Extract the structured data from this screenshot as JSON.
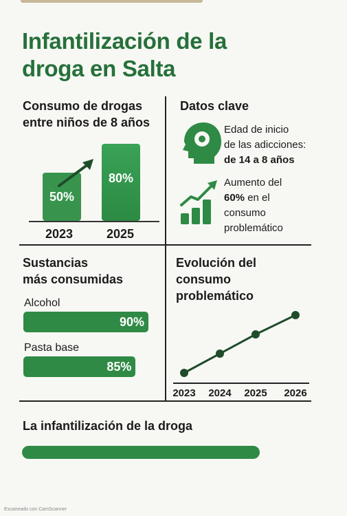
{
  "title_line1": "Infantilización de la",
  "title_line2": "droga en Salta",
  "section_consumo": {
    "title_line1": "Consumo de drogas",
    "title_line2": "entre niños de 8 años"
  },
  "section_datos": {
    "title": "Datos clave",
    "fact1": {
      "line1": "Edad de inicio",
      "line2": "de las adicciones:",
      "line3_bold": "de 14 a 8 años"
    },
    "fact2": {
      "line1": "Aumento del",
      "line2_bold": "60%",
      "line2_rest": " en el",
      "line3": "consumo",
      "line4": "problemático"
    },
    "icons": [
      "head-icon",
      "growth-chart-icon"
    ]
  },
  "section_sustancias": {
    "title_line1": "Sustancias",
    "title_line2": "más consumidas"
  },
  "section_evolucion": {
    "title_line1": "Evolución del",
    "title_line2": "consumo",
    "title_line3": "problemático"
  },
  "section_bottom": {
    "title": "La infantilización de la droga"
  },
  "footer": "Escaneado con CamScanner",
  "colors": {
    "green": "#2f8a45",
    "title_green": "#26703a",
    "dark_green": "#1f4d2c"
  },
  "chart_data": [
    {
      "type": "bar",
      "categories": [
        "2023",
        "2025"
      ],
      "values": [
        50,
        80
      ],
      "labels": [
        "50%",
        "80%"
      ],
      "title": "Consumo de drogas entre niños de 8 años",
      "ylim": [
        0,
        100
      ]
    },
    {
      "type": "bar",
      "orientation": "horizontal",
      "categories": [
        "Alcohol",
        "Pasta base"
      ],
      "values": [
        90,
        85
      ],
      "labels": [
        "90%",
        "85%"
      ],
      "title": "Sustancias más consumidas",
      "xlim": [
        0,
        100
      ]
    },
    {
      "type": "line",
      "x": [
        "2023",
        "2024",
        "2025",
        "2026"
      ],
      "values": [
        1,
        2,
        3,
        4
      ],
      "title": "Evolución del consumo problemático"
    }
  ]
}
